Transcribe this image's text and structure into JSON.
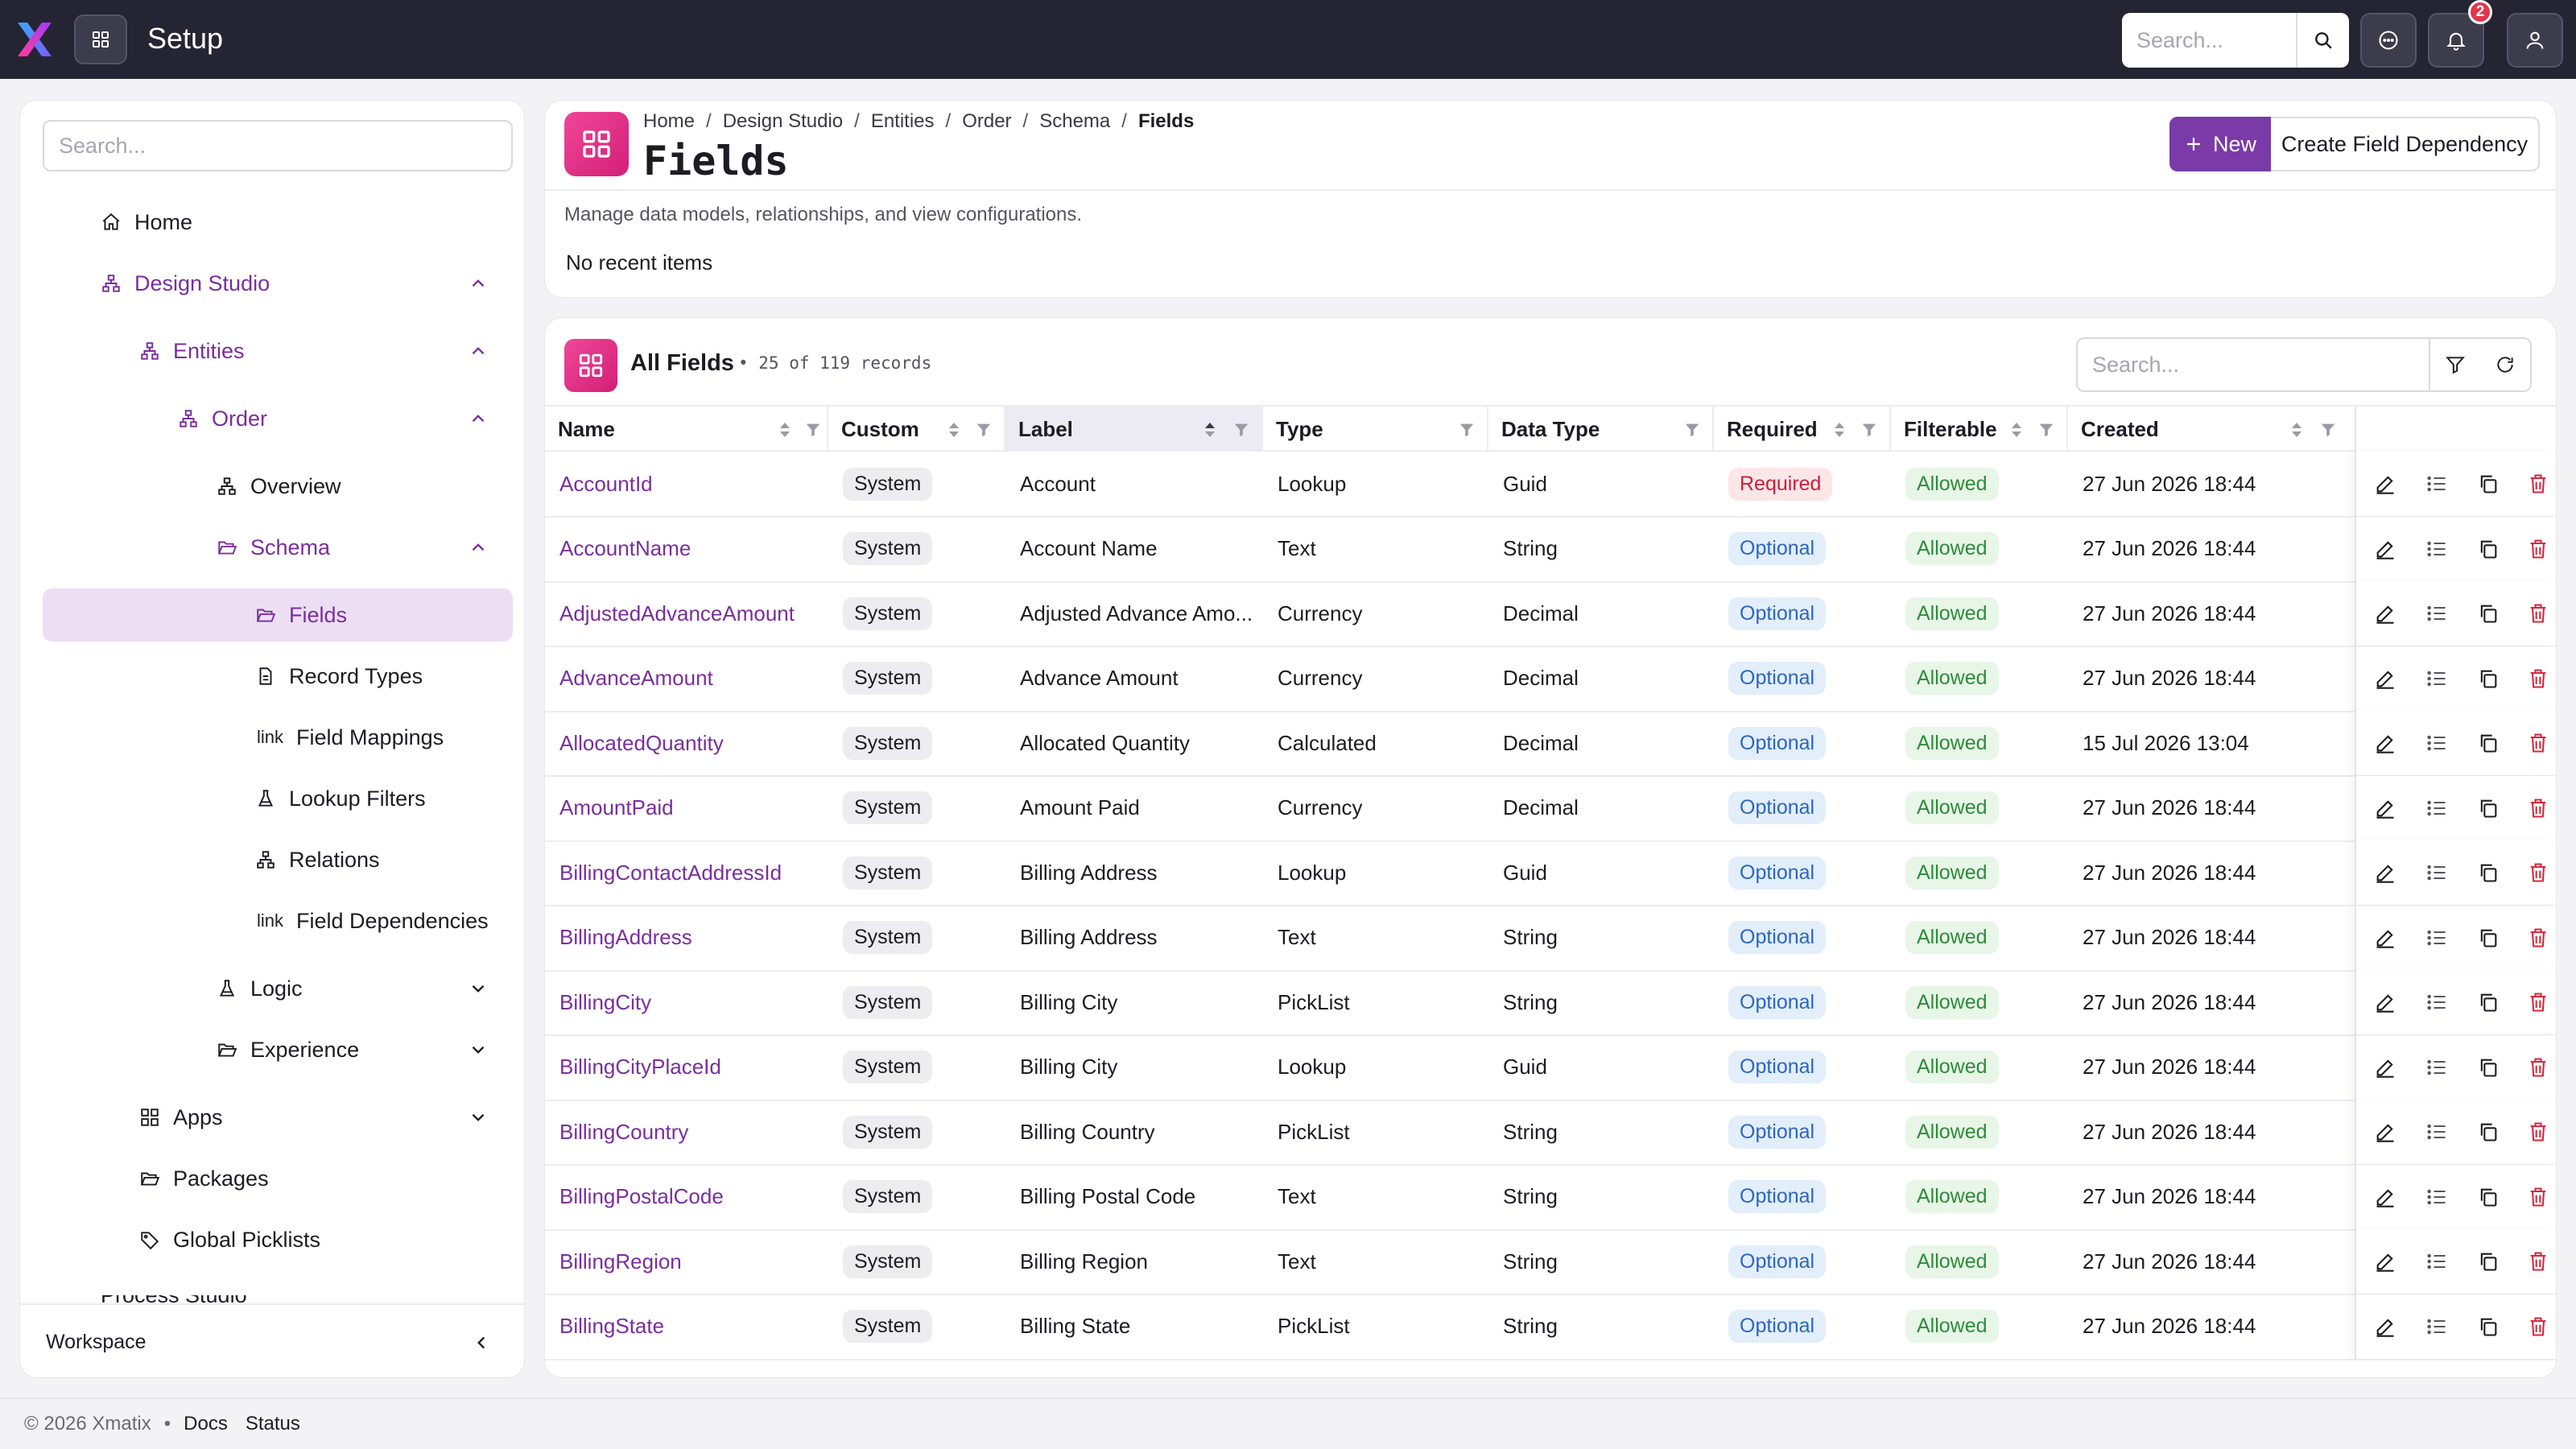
{
  "app": {
    "title": "Setup",
    "notification_count": "2",
    "search_placeholder": "Search..."
  },
  "sidebar": {
    "search_placeholder": "Search...",
    "items": [
      {
        "label": "Home",
        "icon": "home-icon",
        "level": 0
      },
      {
        "label": "Design Studio",
        "icon": "sitemap-icon",
        "level": 0,
        "expanded": true
      },
      {
        "label": "Entities",
        "icon": "sitemap-icon",
        "level": 1,
        "expanded": true
      },
      {
        "label": "Order",
        "icon": "sitemap-icon",
        "level": 2,
        "expanded": true
      },
      {
        "label": "Overview",
        "icon": "sitemap-icon",
        "level": 3
      },
      {
        "label": "Schema",
        "icon": "folder-open-icon",
        "level": 3,
        "expanded": true
      },
      {
        "label": "Fields",
        "icon": "folder-open-icon",
        "level": 4,
        "active": true
      },
      {
        "label": "Record Types",
        "icon": "document-icon",
        "level": 4
      },
      {
        "label": "Field Mappings",
        "prefix": "link",
        "level": 4
      },
      {
        "label": "Lookup Filters",
        "icon": "flask-icon",
        "level": 4
      },
      {
        "label": "Relations",
        "icon": "sitemap-icon",
        "level": 4
      },
      {
        "label": "Field Dependencies",
        "prefix": "link",
        "level": 4
      },
      {
        "label": "Logic",
        "icon": "flask-icon",
        "level": 3,
        "expanded": false
      },
      {
        "label": "Experience",
        "icon": "folder-open-icon",
        "level": 3,
        "expanded": false
      },
      {
        "label": "Apps",
        "icon": "grid-icon",
        "level": 1,
        "expanded": false
      },
      {
        "label": "Packages",
        "icon": "folder-open-icon",
        "level": 1
      },
      {
        "label": "Global Picklists",
        "icon": "tag-icon",
        "level": 1
      }
    ],
    "cut_off_item": "Process Studio",
    "footer_label": "Workspace"
  },
  "header": {
    "breadcrumb": [
      "Home",
      "Design Studio",
      "Entities",
      "Order",
      "Schema",
      "Fields"
    ],
    "title": "Fields",
    "new_label": "New",
    "dependency_label": "Create Field Dependency",
    "description": "Manage data models, relationships, and view configurations.",
    "recent": "No recent items"
  },
  "table": {
    "title": "All Fields",
    "count_text": "• 25 of 119 records",
    "search_placeholder": "Search...",
    "columns": [
      "Name",
      "Custom",
      "Label",
      "Type",
      "Data Type",
      "Required",
      "Filterable",
      "Created"
    ],
    "sorted_column": "Label",
    "rows": [
      {
        "name": "AccountId",
        "custom": "System",
        "label": "Account",
        "type": "Lookup",
        "data_type": "Guid",
        "required": "Required",
        "filterable": "Allowed",
        "created": "27 Jun 2026 18:44"
      },
      {
        "name": "AccountName",
        "custom": "System",
        "label": "Account Name",
        "type": "Text",
        "data_type": "String",
        "required": "Optional",
        "filterable": "Allowed",
        "created": "27 Jun 2026 18:44"
      },
      {
        "name": "AdjustedAdvanceAmount",
        "custom": "System",
        "label": "Adjusted Advance Amo...",
        "type": "Currency",
        "data_type": "Decimal",
        "required": "Optional",
        "filterable": "Allowed",
        "created": "27 Jun 2026 18:44"
      },
      {
        "name": "AdvanceAmount",
        "custom": "System",
        "label": "Advance Amount",
        "type": "Currency",
        "data_type": "Decimal",
        "required": "Optional",
        "filterable": "Allowed",
        "created": "27 Jun 2026 18:44"
      },
      {
        "name": "AllocatedQuantity",
        "custom": "System",
        "label": "Allocated Quantity",
        "type": "Calculated",
        "data_type": "Decimal",
        "required": "Optional",
        "filterable": "Allowed",
        "created": "15 Jul 2026 13:04"
      },
      {
        "name": "AmountPaid",
        "custom": "System",
        "label": "Amount Paid",
        "type": "Currency",
        "data_type": "Decimal",
        "required": "Optional",
        "filterable": "Allowed",
        "created": "27 Jun 2026 18:44"
      },
      {
        "name": "BillingContactAddressId",
        "custom": "System",
        "label": "Billing Address",
        "type": "Lookup",
        "data_type": "Guid",
        "required": "Optional",
        "filterable": "Allowed",
        "created": "27 Jun 2026 18:44"
      },
      {
        "name": "BillingAddress",
        "custom": "System",
        "label": "Billing Address",
        "type": "Text",
        "data_type": "String",
        "required": "Optional",
        "filterable": "Allowed",
        "created": "27 Jun 2026 18:44"
      },
      {
        "name": "BillingCity",
        "custom": "System",
        "label": "Billing City",
        "type": "PickList",
        "data_type": "String",
        "required": "Optional",
        "filterable": "Allowed",
        "created": "27 Jun 2026 18:44"
      },
      {
        "name": "BillingCityPlaceId",
        "custom": "System",
        "label": "Billing City",
        "type": "Lookup",
        "data_type": "Guid",
        "required": "Optional",
        "filterable": "Allowed",
        "created": "27 Jun 2026 18:44"
      },
      {
        "name": "BillingCountry",
        "custom": "System",
        "label": "Billing Country",
        "type": "PickList",
        "data_type": "String",
        "required": "Optional",
        "filterable": "Allowed",
        "created": "27 Jun 2026 18:44"
      },
      {
        "name": "BillingPostalCode",
        "custom": "System",
        "label": "Billing Postal Code",
        "type": "Text",
        "data_type": "String",
        "required": "Optional",
        "filterable": "Allowed",
        "created": "27 Jun 2026 18:44"
      },
      {
        "name": "BillingRegion",
        "custom": "System",
        "label": "Billing Region",
        "type": "Text",
        "data_type": "String",
        "required": "Optional",
        "filterable": "Allowed",
        "created": "27 Jun 2026 18:44"
      },
      {
        "name": "BillingState",
        "custom": "System",
        "label": "Billing State",
        "type": "PickList",
        "data_type": "String",
        "required": "Optional",
        "filterable": "Allowed",
        "created": "27 Jun 2026 18:44"
      }
    ]
  },
  "footer": {
    "copyright": "© 2026 Xmatix",
    "links": [
      "Docs",
      "Status"
    ]
  },
  "colors": {
    "accent": "#7a3aa8",
    "topbar": "#252433",
    "pink": "#e0307f",
    "danger": "#d8283d"
  }
}
